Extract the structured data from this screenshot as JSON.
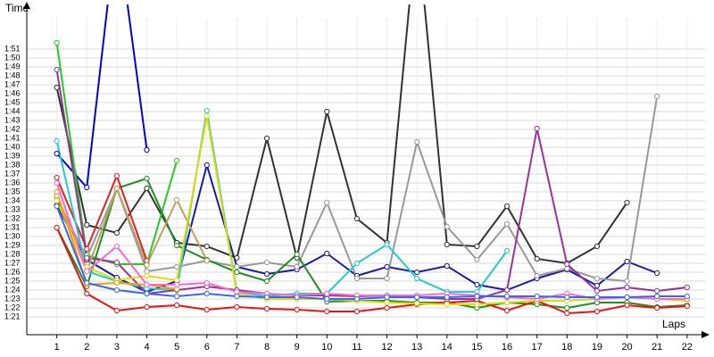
{
  "chart_data": {
    "type": "line",
    "y_label": "Time",
    "x_label": "Laps",
    "x": [
      1,
      2,
      3,
      4,
      5,
      6,
      7,
      8,
      9,
      10,
      11,
      12,
      13,
      14,
      15,
      16,
      17,
      18,
      19,
      20,
      21,
      22
    ],
    "xlim": [
      0,
      22.6
    ],
    "xticks": [
      1,
      2,
      3,
      4,
      5,
      6,
      7,
      8,
      9,
      10,
      11,
      12,
      13,
      14,
      15,
      16,
      17,
      18,
      19,
      20,
      21,
      22
    ],
    "ylim": [
      79,
      114.5
    ],
    "yticks": [
      {
        "value": 81,
        "label": "1:21"
      },
      {
        "value": 82,
        "label": "1:22"
      },
      {
        "value": 83,
        "label": "1:23"
      },
      {
        "value": 84,
        "label": "1:24"
      },
      {
        "value": 85,
        "label": "1:25"
      },
      {
        "value": 86,
        "label": "1:26"
      },
      {
        "value": 87,
        "label": "1:27"
      },
      {
        "value": 88,
        "label": "1:28"
      },
      {
        "value": 89,
        "label": "1:29"
      },
      {
        "value": 90,
        "label": "1:30"
      },
      {
        "value": 91,
        "label": "1:31"
      },
      {
        "value": 92,
        "label": "1:32"
      },
      {
        "value": 93,
        "label": "1:33"
      },
      {
        "value": 94,
        "label": "1:34"
      },
      {
        "value": 95,
        "label": "1:35"
      },
      {
        "value": 96,
        "label": "1:36"
      },
      {
        "value": 97,
        "label": "1:37"
      },
      {
        "value": 98,
        "label": "1:38"
      },
      {
        "value": 99,
        "label": "1:39"
      },
      {
        "value": 100,
        "label": "1:40"
      },
      {
        "value": 101,
        "label": "1:41"
      },
      {
        "value": 102,
        "label": "1:42"
      },
      {
        "value": 103,
        "label": "1:43"
      },
      {
        "value": 104,
        "label": "1:44"
      },
      {
        "value": 105,
        "label": "1:45"
      },
      {
        "value": 106,
        "label": "1:46"
      },
      {
        "value": 107,
        "label": "1:47"
      },
      {
        "value": 108,
        "label": "1:48"
      },
      {
        "value": 109,
        "label": "1:49"
      },
      {
        "value": 110,
        "label": "1:50"
      },
      {
        "value": 111,
        "label": "1:51"
      }
    ],
    "grid": true,
    "series": [
      {
        "color": "#0000dd",
        "values": [
          99.3,
          95.5,
          125,
          99.7,
          null,
          null,
          null,
          null,
          null,
          null,
          null,
          null,
          null,
          null,
          null,
          null,
          null,
          null,
          null,
          null,
          null,
          null
        ]
      },
      {
        "color": "#1a1aaa",
        "values": [
          93.5,
          87.4,
          85.4,
          83.8,
          85.0,
          98.0,
          86.6,
          85.8,
          86.3,
          88.1,
          85.6,
          86.6,
          86.0,
          86.7,
          84.6,
          84.0,
          85.3,
          86.3,
          84.5,
          87.2,
          85.9,
          null
        ]
      },
      {
        "color": "#333333",
        "values": [
          106.7,
          91.3,
          90.4,
          95.4,
          89.3,
          88.9,
          87.6,
          101.0,
          87.6,
          104.0,
          92.0,
          89.3,
          125,
          89.1,
          88.9,
          93.4,
          87.5,
          87.0,
          88.9,
          93.8,
          null,
          null
        ]
      },
      {
        "color": "#999999",
        "values": [
          94.3,
          87.6,
          95.4,
          86.1,
          86.6,
          87.3,
          86.6,
          87.1,
          86.6,
          93.8,
          85.3,
          85.3,
          100.6,
          91.1,
          87.4,
          91.4,
          85.6,
          86.4,
          85.3,
          85.0,
          105.7,
          null
        ]
      },
      {
        "color": "#22cc22",
        "values": [
          111.7,
          87.9,
          86.9,
          86.9,
          98.5,
          null,
          null,
          null,
          null,
          null,
          null,
          null,
          null,
          null,
          null,
          null,
          null,
          null,
          null,
          null,
          null,
          null
        ]
      },
      {
        "color": "#1f8f1f",
        "values": [
          91.0,
          84.4,
          95.4,
          96.5,
          89.0,
          87.4,
          86.0,
          85.0,
          88.0,
          82.7,
          82.8,
          82.8,
          82.6,
          82.6,
          82.0,
          82.6,
          82.4,
          82.0,
          82.6,
          82.6,
          82.1,
          82.3
        ]
      },
      {
        "color": "#ee1111",
        "values": [
          91.0,
          83.6,
          81.7,
          82.1,
          82.3,
          81.8,
          82.1,
          81.9,
          81.8,
          81.6,
          81.6,
          82.0,
          82.4,
          82.6,
          82.8,
          81.7,
          82.8,
          81.4,
          81.6,
          82.3,
          82.0,
          82.2
        ]
      },
      {
        "color": "#dd2222",
        "values": [
          96.6,
          88.6,
          96.8,
          87.3,
          null,
          null,
          null,
          null,
          null,
          null,
          null,
          null,
          null,
          null,
          null,
          null,
          null,
          null,
          null,
          null,
          null,
          null
        ]
      },
      {
        "color": "#22cccc",
        "values": [
          100.7,
          86.1,
          85.0,
          84.2,
          84.0,
          104.1,
          83.8,
          83.3,
          83.6,
          83.6,
          87.0,
          89.1,
          85.3,
          83.8,
          83.8,
          88.4,
          null,
          null,
          null,
          null,
          null,
          null
        ]
      },
      {
        "color": "#993399",
        "values": [
          108.7,
          87.6,
          87.1,
          83.6,
          84.0,
          84.4,
          84.0,
          83.6,
          83.4,
          83.4,
          83.3,
          83.4,
          83.2,
          83.0,
          83.0,
          84.0,
          102.1,
          86.9,
          83.9,
          84.3,
          83.9,
          84.3
        ]
      },
      {
        "color": "#c0a060",
        "values": [
          94.6,
          86.1,
          95.4,
          86.8,
          94.1,
          87.3,
          null,
          null,
          null,
          null,
          null,
          null,
          null,
          null,
          null,
          null,
          null,
          null,
          null,
          null,
          null,
          null
        ]
      },
      {
        "color": "#dddd00",
        "values": [
          94.0,
          86.6,
          85.1,
          85.6,
          85.1,
          103.5,
          83.6,
          83.0,
          83.0,
          83.0,
          82.8,
          82.6,
          82.5,
          82.4,
          82.4,
          82.6,
          82.8,
          82.8,
          83.0,
          83.2,
          83.0,
          82.8
        ]
      },
      {
        "color": "#ff9900",
        "values": [
          95.0,
          84.6,
          84.8,
          84.6,
          84.1,
          null,
          null,
          null,
          null,
          null,
          null,
          null,
          null,
          null,
          null,
          null,
          null,
          null,
          null,
          null,
          null,
          null
        ]
      },
      {
        "color": "#ff66cc",
        "values": [
          96.0,
          86.1,
          88.9,
          84.6,
          84.6,
          84.8,
          83.8,
          83.6,
          83.4,
          83.6,
          83.4,
          83.4,
          83.4,
          83.6,
          83.4,
          83.2,
          83.0,
          83.6,
          83.0,
          83.2,
          83.0,
          83.0
        ]
      },
      {
        "color": "#3366ff",
        "values": [
          93.4,
          84.8,
          84.0,
          83.6,
          83.3,
          83.6,
          83.3,
          83.2,
          83.2,
          83.0,
          83.0,
          83.2,
          83.2,
          83.2,
          83.3,
          83.3,
          83.3,
          83.2,
          83.2,
          83.2,
          83.3,
          83.3
        ]
      }
    ]
  }
}
